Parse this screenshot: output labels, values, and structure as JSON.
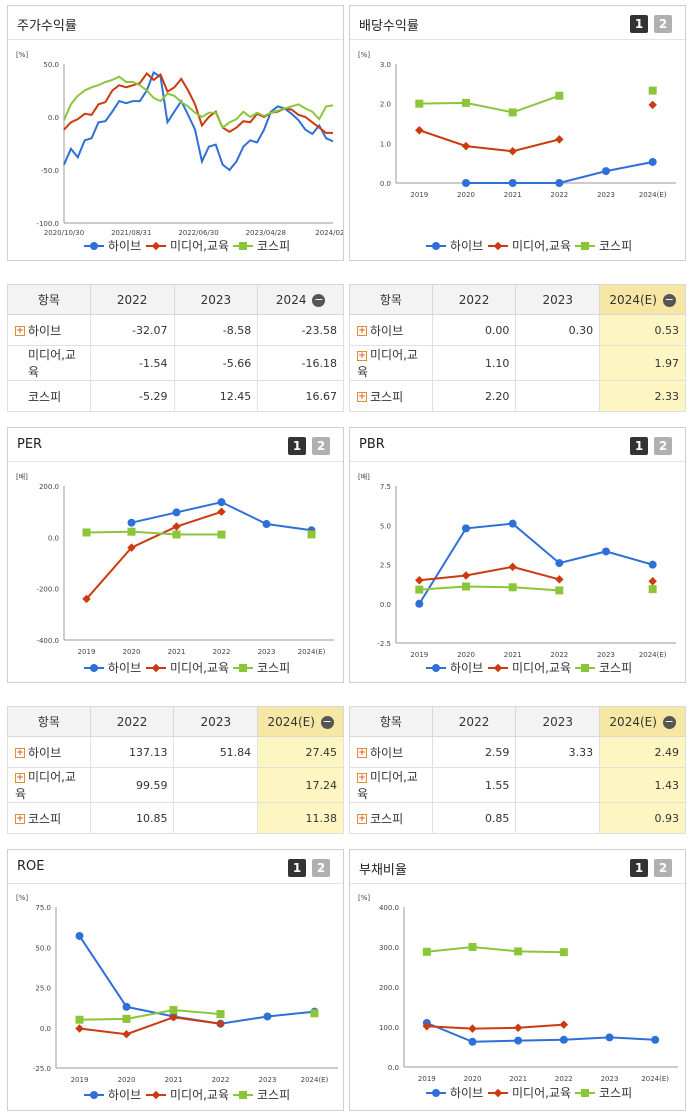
{
  "colors": {
    "hybe": "#2f6fd8",
    "media": "#cc3a10",
    "kospi": "#8bc53a"
  },
  "legend": {
    "hybe": "하이브",
    "media": "미디어,교육",
    "kospi": "코스피"
  },
  "pager": {
    "p1": "1",
    "p2": "2"
  },
  "tables": {
    "dividend": {
      "headers": [
        "항목",
        "2022",
        "2023",
        "2024(E)"
      ],
      "rows": [
        {
          "name": "하이브",
          "cells": [
            "0.00",
            "0.30",
            "0.53"
          ]
        },
        {
          "name": "미디어,교육",
          "cells": [
            "1.10",
            "",
            "1.97"
          ]
        },
        {
          "name": "코스피",
          "cells": [
            "2.20",
            "",
            "2.33"
          ]
        }
      ]
    },
    "stock": {
      "headers": [
        "항목",
        "2022",
        "2023",
        "2024"
      ],
      "rows": [
        {
          "name": "하이브",
          "cells": [
            "-32.07",
            "-8.58",
            "-23.58"
          ]
        },
        {
          "name": "미디어,교육",
          "cells": [
            "-1.54",
            "-5.66",
            "-16.18"
          ]
        },
        {
          "name": "코스피",
          "cells": [
            "-5.29",
            "12.45",
            "16.67"
          ]
        }
      ]
    },
    "per": {
      "headers": [
        "항목",
        "2022",
        "2023",
        "2024(E)"
      ],
      "rows": [
        {
          "name": "하이브",
          "cells": [
            "137.13",
            "51.84",
            "27.45"
          ]
        },
        {
          "name": "미디어,교육",
          "cells": [
            "99.59",
            "",
            "17.24"
          ]
        },
        {
          "name": "코스피",
          "cells": [
            "10.85",
            "",
            "11.38"
          ]
        }
      ]
    },
    "pbr": {
      "headers": [
        "항목",
        "2022",
        "2023",
        "2024(E)"
      ],
      "rows": [
        {
          "name": "하이브",
          "cells": [
            "2.59",
            "3.33",
            "2.49"
          ]
        },
        {
          "name": "미디어,교육",
          "cells": [
            "1.55",
            "",
            "1.43"
          ]
        },
        {
          "name": "코스피",
          "cells": [
            "0.85",
            "",
            "0.93"
          ]
        }
      ]
    }
  },
  "chart_data": [
    {
      "id": "stock",
      "title": "주가수익률",
      "type": "line",
      "unit": "[%]",
      "ylim": [
        -100,
        50
      ],
      "yticks": [
        "50.0",
        "0.0",
        "-50.0",
        "-100.0"
      ],
      "xticks": [
        "2020/10/30",
        "2021/08/31",
        "2022/06/30",
        "2023/04/28",
        "2024/02/"
      ],
      "series": [
        {
          "key": "hybe",
          "name": "하이브",
          "values": [
            -45,
            -30,
            -38,
            -22,
            -20,
            -5,
            -4,
            5,
            15,
            13,
            15,
            15,
            25,
            42,
            38,
            -5,
            5,
            15,
            2,
            -12,
            -42,
            -28,
            -26,
            -45,
            -50,
            -42,
            -28,
            -22,
            -24,
            -12,
            5,
            10,
            8,
            3,
            -3,
            -12,
            -16,
            -8,
            -20,
            -23
          ]
        },
        {
          "key": "media",
          "name": "미디어,교육",
          "values": [
            -12,
            -5,
            -2,
            3,
            2,
            12,
            14,
            25,
            30,
            28,
            30,
            32,
            41,
            35,
            40,
            24,
            28,
            36,
            25,
            12,
            -8,
            0,
            5,
            -10,
            -14,
            -10,
            -4,
            -5,
            3,
            0,
            4,
            5,
            8,
            7,
            2,
            0,
            -5,
            -10,
            -15,
            -15
          ]
        },
        {
          "key": "kospi",
          "name": "코스피",
          "values": [
            -3,
            12,
            20,
            25,
            28,
            30,
            33,
            35,
            38,
            33,
            33,
            30,
            25,
            18,
            15,
            22,
            20,
            14,
            10,
            4,
            0,
            4,
            4,
            -10,
            -5,
            -2,
            5,
            0,
            4,
            1,
            4,
            6,
            8,
            10,
            12,
            8,
            5,
            -2,
            10,
            11
          ]
        }
      ]
    },
    {
      "id": "dividend",
      "title": "배당수익률",
      "type": "line",
      "unit": "[%]",
      "ylim": [
        0,
        3
      ],
      "yticks": [
        "3.0",
        "2.0",
        "1.0",
        "0.0"
      ],
      "categories": [
        "2019",
        "2020",
        "2021",
        "2022",
        "2023",
        "2024(E)"
      ],
      "series": [
        {
          "key": "hybe",
          "name": "하이브",
          "values": [
            null,
            0.0,
            0.0,
            0.0,
            0.3,
            0.53
          ]
        },
        {
          "key": "media",
          "name": "미디어,교육",
          "values": [
            1.33,
            0.93,
            0.8,
            1.1,
            null,
            1.97
          ]
        },
        {
          "key": "kospi",
          "name": "코스피",
          "values": [
            2.0,
            2.02,
            1.78,
            2.2,
            null,
            2.33
          ]
        }
      ]
    },
    {
      "id": "per",
      "title": "PER",
      "type": "line",
      "unit": "[배]",
      "ylim": [
        -400,
        200
      ],
      "yticks": [
        "200.0",
        "0.0",
        "-200.0",
        "-400.0"
      ],
      "categories": [
        "2019",
        "2020",
        "2021",
        "2022",
        "2023",
        "2024(E)"
      ],
      "series": [
        {
          "key": "hybe",
          "name": "하이브",
          "values": [
            null,
            57,
            97,
            137.13,
            51.84,
            27.45
          ]
        },
        {
          "key": "media",
          "name": "미디어,교육",
          "values": [
            -240,
            -40,
            42,
            99.59,
            null,
            17.24
          ]
        },
        {
          "key": "kospi",
          "name": "코스피",
          "values": [
            19,
            22,
            11,
            10.85,
            null,
            11.38
          ]
        }
      ]
    },
    {
      "id": "pbr",
      "title": "PBR",
      "type": "line",
      "unit": "[배]",
      "ylim": [
        -2.5,
        7.5
      ],
      "yticks": [
        "7.5",
        "5.0",
        "2.5",
        "0.0",
        "-2.5"
      ],
      "categories": [
        "2019",
        "2020",
        "2021",
        "2022",
        "2023",
        "2024(E)"
      ],
      "series": [
        {
          "key": "hybe",
          "name": "하이브",
          "values": [
            0.0,
            4.8,
            5.1,
            2.59,
            3.33,
            2.49
          ]
        },
        {
          "key": "media",
          "name": "미디어,교육",
          "values": [
            1.5,
            1.8,
            2.35,
            1.55,
            null,
            1.43
          ]
        },
        {
          "key": "kospi",
          "name": "코스피",
          "values": [
            0.9,
            1.1,
            1.05,
            0.85,
            null,
            0.93
          ]
        }
      ]
    },
    {
      "id": "roe",
      "title": "ROE",
      "type": "line",
      "unit": "[%]",
      "ylim": [
        -25,
        75
      ],
      "yticks": [
        "75.0",
        "50.0",
        "25.0",
        "0.0",
        "-25.0"
      ],
      "categories": [
        "2019",
        "2020",
        "2021",
        "2022",
        "2023",
        "2024(E)"
      ],
      "series": [
        {
          "key": "hybe",
          "name": "하이브",
          "values": [
            57,
            13,
            7,
            2.5,
            7,
            10
          ]
        },
        {
          "key": "media",
          "name": "미디어,교육",
          "values": [
            -0.5,
            -4,
            6.5,
            2.5,
            null,
            null
          ]
        },
        {
          "key": "kospi",
          "name": "코스피",
          "values": [
            5,
            5.5,
            11,
            8.5,
            null,
            9
          ]
        }
      ]
    },
    {
      "id": "debt",
      "title": "부채비율",
      "type": "line",
      "unit": "[%]",
      "ylim": [
        0,
        400
      ],
      "yticks": [
        "400.0",
        "300.0",
        "200.0",
        "100.0",
        "0.0"
      ],
      "categories": [
        "2019",
        "2020",
        "2021",
        "2022",
        "2023",
        "2024(E)"
      ],
      "series": [
        {
          "key": "hybe",
          "name": "하이브",
          "values": [
            110,
            63,
            66,
            68,
            74,
            68
          ]
        },
        {
          "key": "media",
          "name": "미디어,교육",
          "values": [
            102,
            96,
            98,
            106,
            null,
            null
          ]
        },
        {
          "key": "kospi",
          "name": "코스피",
          "values": [
            288,
            300,
            289,
            287,
            null,
            null
          ]
        }
      ]
    }
  ]
}
